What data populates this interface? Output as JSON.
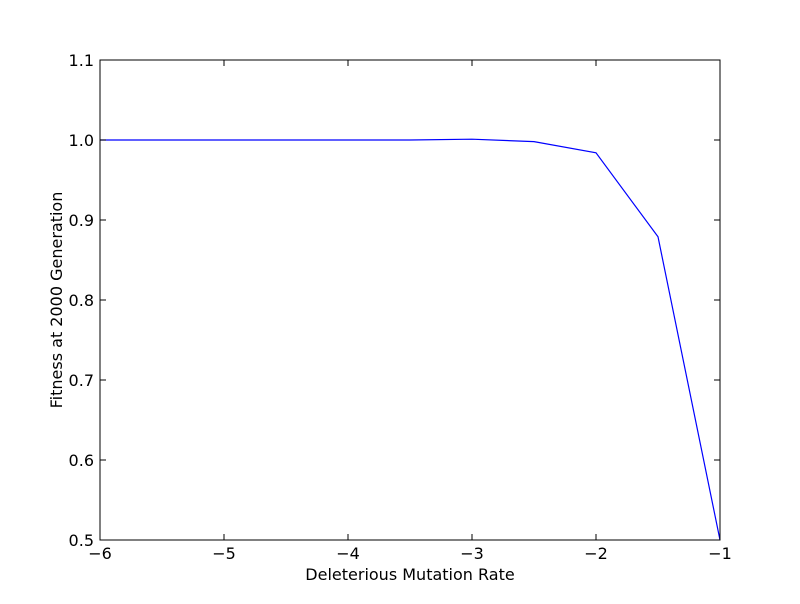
{
  "chart_data": {
    "type": "line",
    "title": "",
    "xlabel": "Deleterious Mutation Rate",
    "ylabel": "Fitness at 2000 Generation",
    "xlim": [
      -6,
      -1
    ],
    "ylim": [
      0.5,
      1.1
    ],
    "grid": false,
    "legend": "none",
    "x_ticks": [
      -6,
      -5,
      -4,
      -3,
      -2,
      -1
    ],
    "x_tick_labels": [
      "−6",
      "−5",
      "−4",
      "−3",
      "−2",
      "−1"
    ],
    "y_ticks": [
      0.5,
      0.6,
      0.7,
      0.8,
      0.9,
      1.0,
      1.1
    ],
    "y_tick_labels": [
      "0.5",
      "0.6",
      "0.7",
      "0.8",
      "0.9",
      "1.0",
      "1.1"
    ],
    "series": [
      {
        "color": "#0000ff",
        "x": [
          -6,
          -5.5,
          -5,
          -4.5,
          -4,
          -3.5,
          -3,
          -2.5,
          -2,
          -1.5,
          -1
        ],
        "y": [
          1.0,
          1.0,
          1.0,
          1.0,
          1.0,
          1.0,
          1.001,
          0.998,
          0.984,
          0.879,
          0.5
        ]
      }
    ]
  }
}
